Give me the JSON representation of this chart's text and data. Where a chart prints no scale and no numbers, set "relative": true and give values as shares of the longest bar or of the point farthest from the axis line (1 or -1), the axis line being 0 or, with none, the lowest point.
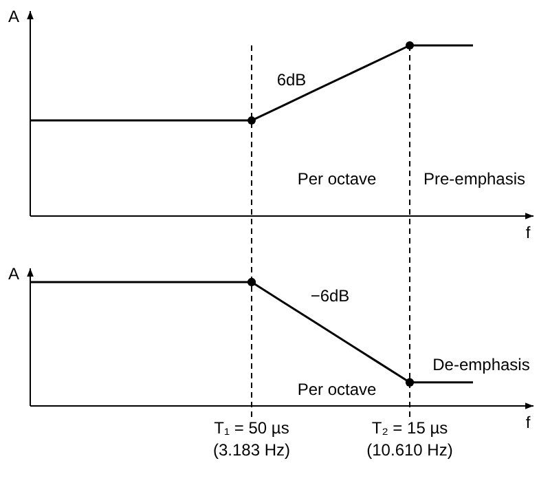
{
  "chart_data": [
    {
      "type": "line",
      "xlabel": "f",
      "ylabel": "A",
      "relative": true,
      "categories": [
        null,
        null,
        null,
        null,
        null,
        null,
        null,
        null,
        null,
        null,
        null,
        null,
        null,
        null,
        null
      ],
      "line_style": "solid",
      "series": [
        {
          "color": "#000000",
          "values": [
            0.56,
            0.56,
            0.56,
            0.56,
            0.56,
            0.56,
            0.56,
            0.56,
            0.648,
            0.736,
            0.824,
            0.912,
            1,
            1,
            1
          ]
        }
      ],
      "annotations": [
        "6dB",
        "Per octave",
        "Pre-emphasis"
      ]
    },
    {
      "type": "line",
      "xlabel": "f",
      "ylabel": "A",
      "relative": true,
      "categories": [
        null,
        null,
        null,
        null,
        null,
        null,
        null,
        "T₁ = 50 µs\n(3.183 Hz)",
        null,
        null,
        null,
        null,
        "T₂ = 15 µs\n(10.610 Hz)",
        null,
        null
      ],
      "grid": "x",
      "line_style": "solid",
      "series": [
        {
          "color": "#000000",
          "values": [
            1,
            1,
            1,
            1,
            1,
            1,
            1,
            1,
            0.838,
            0.676,
            0.514,
            0.352,
            0.19,
            0.19,
            0.19
          ]
        },
        {
          "type": "scatter",
          "marker": "circle",
          "color": "#000000",
          "values": [
            null,
            null,
            null,
            null,
            null,
            null,
            null,
            1,
            null,
            null,
            null,
            null,
            0.19,
            null,
            null
          ]
        }
      ],
      "annotations": [
        "−6dB",
        "Per octave",
        "De-emphasis"
      ]
    }
  ]
}
